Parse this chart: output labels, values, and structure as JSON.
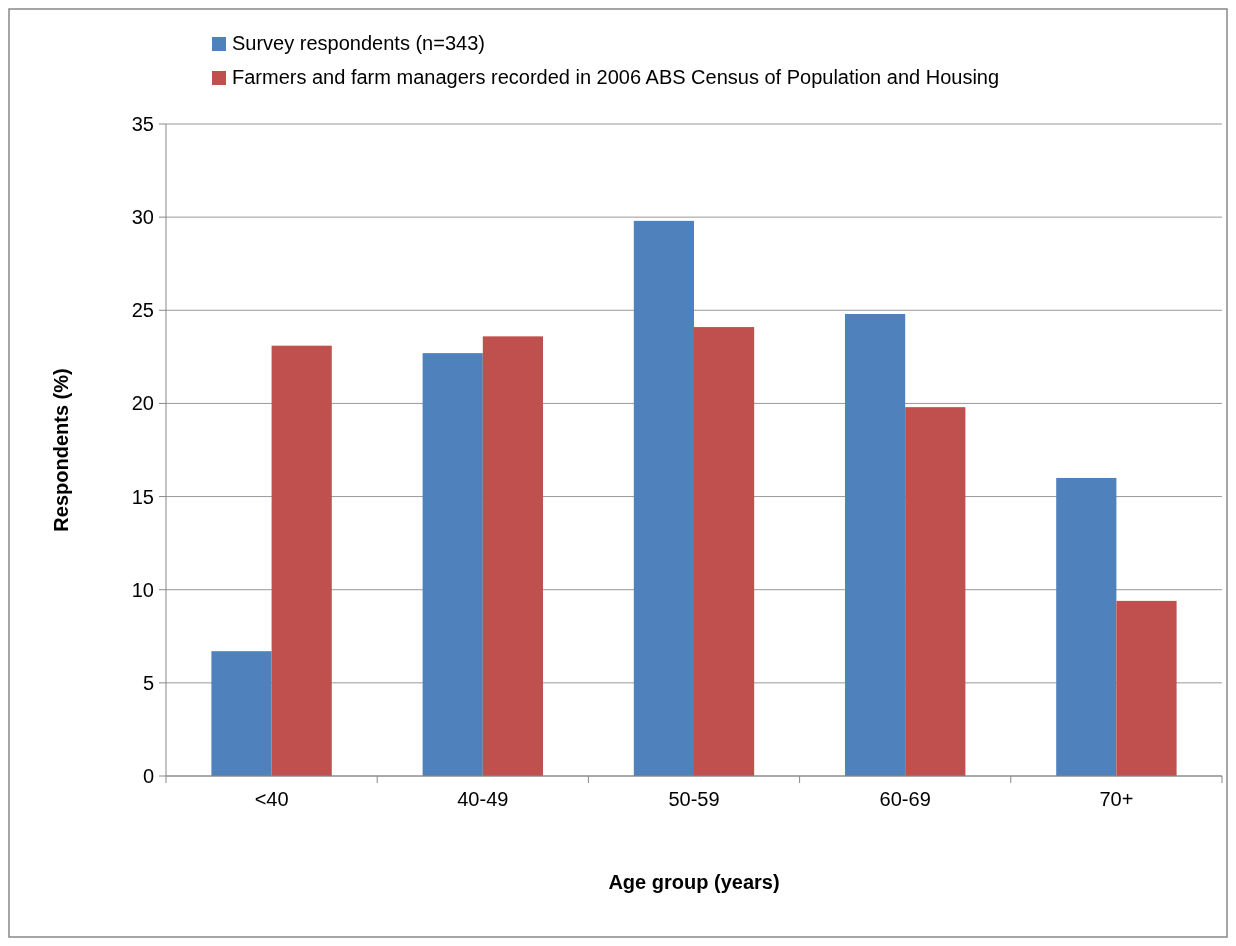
{
  "chart_data": {
    "type": "bar",
    "xlabel": "Age group (years)",
    "ylabel": "Respondents (%)",
    "categories": [
      "<40",
      "40-49",
      "50-59",
      "60-69",
      "70+"
    ],
    "series": [
      {
        "name": "Survey respondents (n=343)",
        "color": "#4f81bd",
        "values": [
          6.7,
          22.7,
          29.8,
          24.8,
          16.0
        ]
      },
      {
        "name": "Farmers and farm managers recorded in 2006 ABS Census of Population and Housing",
        "color": "#c0504d",
        "values": [
          23.1,
          23.6,
          24.1,
          19.8,
          9.4
        ]
      }
    ],
    "ylim": [
      0,
      35
    ],
    "yticks": [
      0,
      5,
      10,
      15,
      20,
      25,
      30,
      35
    ],
    "grid": "y",
    "legend": "top"
  }
}
